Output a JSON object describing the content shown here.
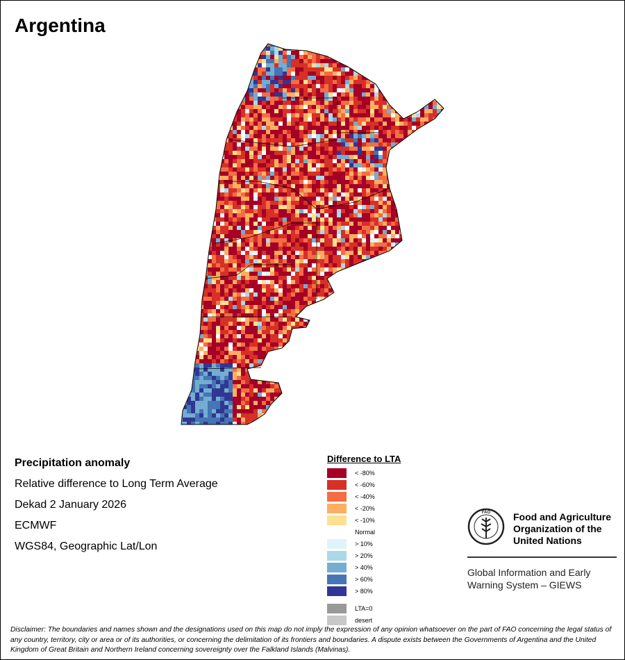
{
  "title": "Argentina",
  "info": {
    "heading": "Precipitation anomaly",
    "line1": "Relative difference to Long Term Average",
    "line2": "Dekad 2 January 2026",
    "line3": "ECMWF",
    "line4": "WGS84, Geographic Lat/Lon"
  },
  "legend": {
    "title": "Difference to LTA",
    "items": [
      {
        "label": "< -80%",
        "color": "#a50026"
      },
      {
        "label": "< -60%",
        "color": "#d73027"
      },
      {
        "label": "< -40%",
        "color": "#f46d43"
      },
      {
        "label": "< -20%",
        "color": "#fdae61"
      },
      {
        "label": "< -10%",
        "color": "#fee090"
      },
      {
        "label": "Normal",
        "color": "#ffffff"
      },
      {
        "label": "> 10%",
        "color": "#e0f3f8"
      },
      {
        "label": "> 20%",
        "color": "#abd9e9"
      },
      {
        "label": "> 40%",
        "color": "#74add1"
      },
      {
        "label": "> 60%",
        "color": "#4575b4"
      },
      {
        "label": "> 80%",
        "color": "#313695"
      }
    ],
    "extra": [
      {
        "label": "LTA=0",
        "color": "#999999"
      },
      {
        "label": "desert",
        "color": "#c8c8c8"
      }
    ]
  },
  "fao": {
    "logo_text": "FAO FIAT PANIS",
    "name": "Food and Agriculture Organization of the United Nations",
    "giews": "Global Information and Early Warning System – GIEWS"
  },
  "disclaimer": "Disclaimer: The boundaries and names shown and the designations used on this map do not imply the expression of any opinion whatsoever on the part of FAO concerning the legal status of any country, territory, city or area or of its authorities, or concerning the delimitation of its frontiers and boundaries. A dispute exists between the Governments of Argentina and the United Kingdom of Great Britain and Northern Ireland concerning sovereignty over the Falkland Islands (Malvinas)."
}
